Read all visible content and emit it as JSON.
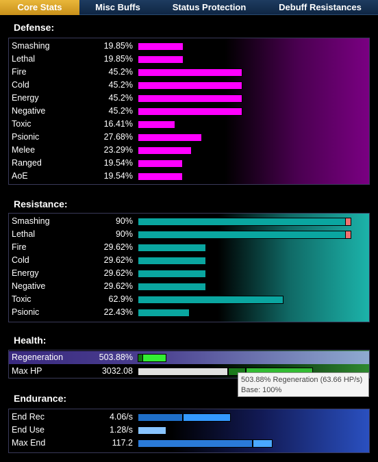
{
  "tabs": [
    "Core Stats",
    "Misc Buffs",
    "Status Protection",
    "Debuff Resistances"
  ],
  "defense": {
    "title": "Defense:",
    "rows": [
      {
        "label": "Smashing",
        "value": "19.85%",
        "pct": 19.85
      },
      {
        "label": "Lethal",
        "value": "19.85%",
        "pct": 19.85
      },
      {
        "label": "Fire",
        "value": "45.2%",
        "pct": 45.2
      },
      {
        "label": "Cold",
        "value": "45.2%",
        "pct": 45.2
      },
      {
        "label": "Energy",
        "value": "45.2%",
        "pct": 45.2
      },
      {
        "label": "Negative",
        "value": "45.2%",
        "pct": 45.2
      },
      {
        "label": "Toxic",
        "value": "16.41%",
        "pct": 16.41
      },
      {
        "label": "Psionic",
        "value": "27.68%",
        "pct": 27.68
      },
      {
        "label": "Melee",
        "value": "23.29%",
        "pct": 23.29
      },
      {
        "label": "Ranged",
        "value": "19.54%",
        "pct": 19.54
      },
      {
        "label": "AoE",
        "value": "19.54%",
        "pct": 19.54
      }
    ],
    "bar_color": "#ff00ff",
    "scale_max": 100
  },
  "resistance": {
    "title": "Resistance:",
    "rows": [
      {
        "label": "Smashing",
        "value": "90%",
        "pct": 90,
        "capped": true
      },
      {
        "label": "Lethal",
        "value": "90%",
        "pct": 90,
        "capped": true
      },
      {
        "label": "Fire",
        "value": "29.62%",
        "pct": 29.62
      },
      {
        "label": "Cold",
        "value": "29.62%",
        "pct": 29.62
      },
      {
        "label": "Energy",
        "value": "29.62%",
        "pct": 29.62
      },
      {
        "label": "Negative",
        "value": "29.62%",
        "pct": 29.62
      },
      {
        "label": "Toxic",
        "value": "62.9%",
        "pct": 62.9
      },
      {
        "label": "Psionic",
        "value": "22.43%",
        "pct": 22.43
      }
    ],
    "bar_color": "#0aa6a0",
    "cap_color": "#f07070",
    "scale_max": 100
  },
  "health": {
    "title": "Health:",
    "rows": [
      {
        "label": "Regeneration",
        "value": "503.88%",
        "highlighted": true
      },
      {
        "label": "Max HP",
        "value": "3032.08"
      }
    ]
  },
  "tooltip": {
    "line1": "503.88% Regeneration (63.66 HP/s)",
    "line2": "Base: 100%"
  },
  "endurance": {
    "title": "Endurance:",
    "rows": [
      {
        "label": "End Rec",
        "value": "4.06/s"
      },
      {
        "label": "End Use",
        "value": "1.28/s"
      },
      {
        "label": "Max End",
        "value": "117.2"
      }
    ]
  }
}
